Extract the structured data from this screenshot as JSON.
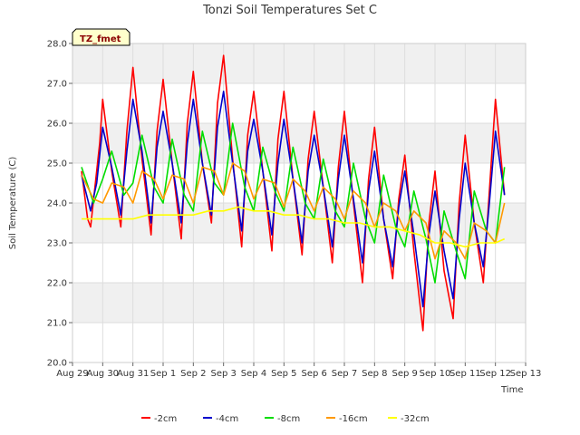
{
  "chart_data": {
    "type": "line",
    "title": "Tonzi Soil Temperatures Set C",
    "xlabel": "Time",
    "ylabel": "Soil Temperature (C)",
    "badge": "TZ_fmet",
    "ylim": [
      20.0,
      28.0
    ],
    "xlim": [
      0,
      15
    ],
    "yticks": [
      "20.0",
      "21.0",
      "22.0",
      "23.0",
      "24.0",
      "25.0",
      "26.0",
      "27.0",
      "28.0"
    ],
    "xticks": [
      "Aug 29",
      "Aug 30",
      "Aug 31",
      "Sep 1",
      "Sep 2",
      "Sep 3",
      "Sep 4",
      "Sep 5",
      "Sep 6",
      "Sep 7",
      "Sep 8",
      "Sep 9",
      "Sep 10",
      "Sep 11",
      "Sep 12",
      "Sep 13"
    ],
    "grid": true,
    "legend_position": "bottom",
    "series": [
      {
        "name": "-2cm",
        "color": "#ff0000",
        "x": [
          0.3,
          0.5,
          0.6,
          0.9,
          1.0,
          1.3,
          1.6,
          1.8,
          2.0,
          2.3,
          2.6,
          2.8,
          3.0,
          3.3,
          3.6,
          3.8,
          4.0,
          4.3,
          4.6,
          4.8,
          5.0,
          5.3,
          5.6,
          5.8,
          6.0,
          6.3,
          6.6,
          6.8,
          7.0,
          7.3,
          7.6,
          7.8,
          8.0,
          8.3,
          8.6,
          8.8,
          9.0,
          9.3,
          9.6,
          9.8,
          10.0,
          10.3,
          10.6,
          10.8,
          11.0,
          11.3,
          11.6,
          11.8,
          12.0,
          12.3,
          12.6,
          12.8,
          13.0,
          13.3,
          13.6,
          13.8,
          14.0,
          14.3
        ],
        "y": [
          24.8,
          23.6,
          23.4,
          25.5,
          26.6,
          24.8,
          23.4,
          25.8,
          27.4,
          25.1,
          23.2,
          25.8,
          27.1,
          25.0,
          23.1,
          26.0,
          27.3,
          25.0,
          23.5,
          26.5,
          27.7,
          25.1,
          22.9,
          25.7,
          26.8,
          24.8,
          22.8,
          25.6,
          26.8,
          24.6,
          22.7,
          25.1,
          26.3,
          24.4,
          22.5,
          24.9,
          26.3,
          24.0,
          22.0,
          24.6,
          25.9,
          23.6,
          22.1,
          24.1,
          25.2,
          22.8,
          20.8,
          23.5,
          24.8,
          22.3,
          21.1,
          24.0,
          25.7,
          23.5,
          22.0,
          24.3,
          26.6,
          24.2
        ]
      },
      {
        "name": "-4cm",
        "color": "#0000cc",
        "x": [
          0.3,
          0.6,
          0.8,
          1.0,
          1.3,
          1.6,
          1.8,
          2.0,
          2.3,
          2.6,
          2.8,
          3.0,
          3.3,
          3.6,
          3.8,
          4.0,
          4.3,
          4.6,
          4.8,
          5.0,
          5.3,
          5.6,
          5.8,
          6.0,
          6.3,
          6.6,
          6.8,
          7.0,
          7.3,
          7.6,
          7.8,
          8.0,
          8.3,
          8.6,
          8.8,
          9.0,
          9.3,
          9.6,
          9.8,
          10.0,
          10.3,
          10.6,
          10.8,
          11.0,
          11.3,
          11.6,
          11.8,
          12.0,
          12.3,
          12.6,
          12.8,
          13.0,
          13.3,
          13.6,
          13.8,
          14.0,
          14.3
        ],
        "y": [
          24.7,
          23.8,
          24.5,
          25.9,
          24.9,
          23.7,
          25.3,
          26.6,
          25.3,
          23.5,
          25.4,
          26.3,
          25.0,
          23.5,
          25.5,
          26.6,
          25.0,
          23.7,
          25.9,
          26.8,
          25.0,
          23.3,
          25.3,
          26.1,
          24.8,
          23.2,
          25.0,
          26.1,
          24.6,
          23.0,
          24.8,
          25.7,
          24.4,
          22.9,
          24.6,
          25.7,
          24.1,
          22.5,
          24.3,
          25.3,
          23.6,
          22.4,
          23.9,
          24.8,
          23.2,
          21.4,
          23.2,
          24.3,
          22.8,
          21.6,
          23.6,
          25.0,
          23.5,
          22.4,
          24.0,
          25.8,
          24.2
        ]
      },
      {
        "name": "-8cm",
        "color": "#00dd00",
        "x": [
          0.3,
          0.7,
          1.0,
          1.3,
          1.7,
          2.0,
          2.3,
          2.7,
          3.0,
          3.3,
          3.7,
          4.0,
          4.3,
          4.7,
          5.0,
          5.3,
          5.7,
          6.0,
          6.3,
          6.7,
          7.0,
          7.3,
          7.7,
          8.0,
          8.3,
          8.7,
          9.0,
          9.3,
          9.7,
          10.0,
          10.3,
          10.7,
          11.0,
          11.3,
          11.7,
          12.0,
          12.3,
          12.7,
          13.0,
          13.3,
          13.7,
          14.0,
          14.3
        ],
        "y": [
          24.9,
          24.0,
          24.6,
          25.3,
          24.2,
          24.5,
          25.7,
          24.4,
          24.0,
          25.6,
          24.2,
          23.8,
          25.8,
          24.5,
          24.2,
          26.0,
          24.4,
          23.8,
          25.4,
          24.3,
          23.8,
          25.4,
          24.0,
          23.6,
          25.1,
          23.8,
          23.4,
          25.0,
          23.6,
          23.0,
          24.7,
          23.4,
          22.9,
          24.3,
          23.1,
          22.0,
          23.8,
          22.8,
          22.1,
          24.3,
          23.3,
          23.0,
          24.9
        ]
      },
      {
        "name": "-16cm",
        "color": "#ff9900",
        "x": [
          0.3,
          0.7,
          1.0,
          1.3,
          1.7,
          2.0,
          2.3,
          2.7,
          3.0,
          3.3,
          3.7,
          4.0,
          4.3,
          4.7,
          5.0,
          5.3,
          5.7,
          6.0,
          6.3,
          6.7,
          7.0,
          7.3,
          7.7,
          8.0,
          8.3,
          8.7,
          9.0,
          9.3,
          9.7,
          10.0,
          10.3,
          10.7,
          11.0,
          11.3,
          11.7,
          12.0,
          12.3,
          12.7,
          13.0,
          13.3,
          13.7,
          14.0,
          14.3
        ],
        "y": [
          24.7,
          24.1,
          24.0,
          24.5,
          24.4,
          24.0,
          24.8,
          24.6,
          24.1,
          24.7,
          24.6,
          24.0,
          24.9,
          24.8,
          24.2,
          25.0,
          24.8,
          24.1,
          24.6,
          24.5,
          23.9,
          24.6,
          24.3,
          23.8,
          24.4,
          24.1,
          23.6,
          24.3,
          24.0,
          23.4,
          24.0,
          23.8,
          23.3,
          23.8,
          23.5,
          22.6,
          23.3,
          23.0,
          22.6,
          23.5,
          23.3,
          23.0,
          24.0
        ]
      },
      {
        "name": "-32cm",
        "color": "#ffff00",
        "x": [
          0.3,
          1.0,
          1.5,
          2.0,
          2.5,
          3.0,
          3.5,
          4.0,
          4.5,
          5.0,
          5.5,
          6.0,
          6.5,
          7.0,
          7.5,
          8.0,
          8.5,
          9.0,
          9.5,
          10.0,
          10.5,
          11.0,
          11.5,
          12.0,
          12.5,
          13.0,
          13.5,
          14.0,
          14.3
        ],
        "y": [
          23.6,
          23.6,
          23.6,
          23.6,
          23.7,
          23.7,
          23.7,
          23.7,
          23.8,
          23.8,
          23.9,
          23.8,
          23.8,
          23.7,
          23.7,
          23.6,
          23.6,
          23.5,
          23.5,
          23.4,
          23.4,
          23.3,
          23.2,
          23.0,
          23.0,
          22.9,
          23.0,
          23.0,
          23.1
        ]
      }
    ]
  }
}
